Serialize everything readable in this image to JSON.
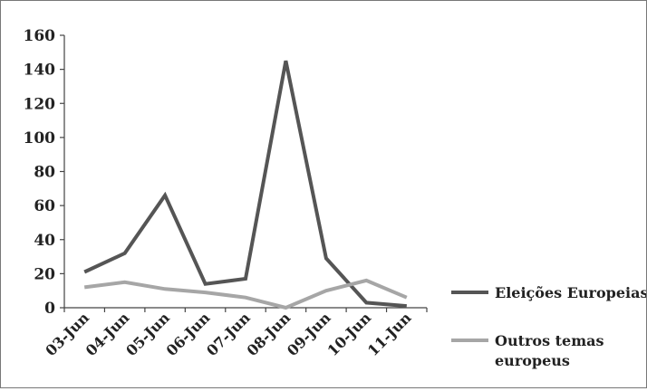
{
  "chart_data": {
    "type": "line",
    "categories": [
      "03-Jun",
      "04-Jun",
      "05-Jun",
      "06-Jun",
      "07-Jun",
      "08-Jun",
      "09-Jun",
      "10-Jun",
      "11-Jun"
    ],
    "series": [
      {
        "name": "Eleições Europeias",
        "values": [
          21,
          32,
          66,
          14,
          17,
          145,
          29,
          3,
          1
        ],
        "color": "#555555"
      },
      {
        "name": "Outros temas europeus",
        "name_lines": [
          "Outros temas",
          "europeus"
        ],
        "values": [
          12,
          15,
          11,
          9,
          6,
          0,
          10,
          16,
          6
        ],
        "color": "#a6a6a6"
      }
    ],
    "y_ticks": [
      "0",
      "20",
      "40",
      "60",
      "80",
      "100",
      "120",
      "140",
      "160"
    ],
    "ylim": [
      0,
      160
    ],
    "grid": false,
    "legend_position": "right"
  }
}
